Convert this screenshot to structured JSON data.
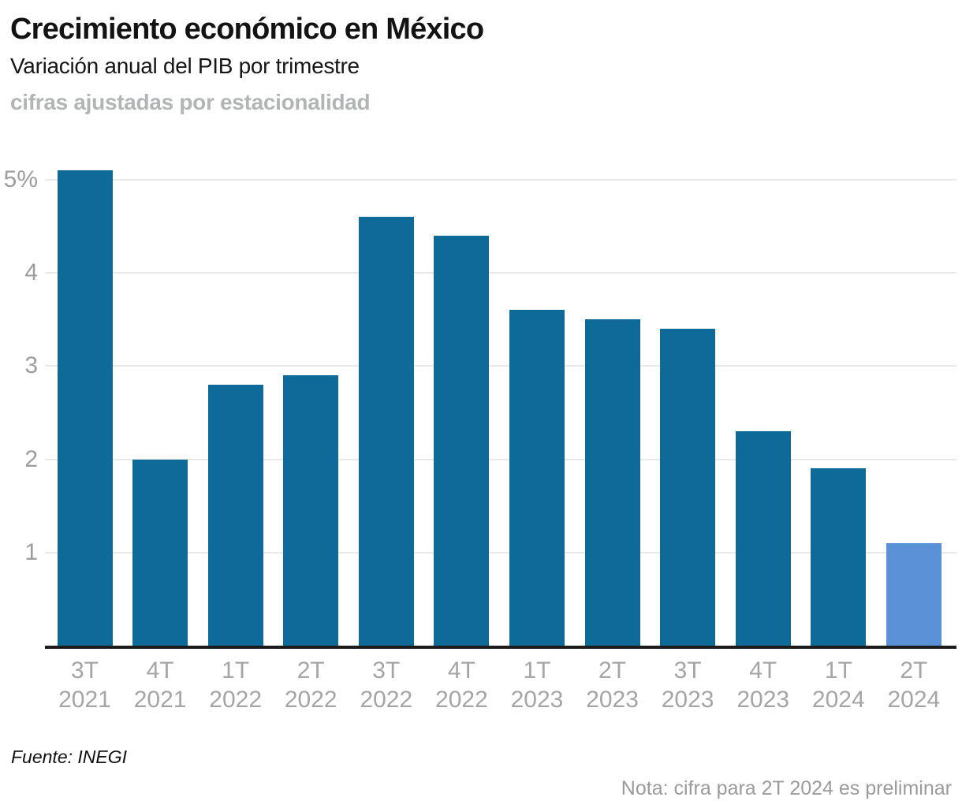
{
  "header": {
    "title": "Crecimiento económico en México",
    "subtitle": "Variación anual del PIB por trimestre",
    "kicker": "cifras ajustadas por estacionalidad"
  },
  "footer": {
    "source": "Fuente: INEGI",
    "note": "Nota: cifra para 2T 2024 es preliminar"
  },
  "chart_data": {
    "type": "bar",
    "title": "Crecimiento económico en México",
    "subtitle": "Variación anual del PIB por trimestre",
    "categories": [
      "3T 2021",
      "4T 2021",
      "1T 2022",
      "2T 2022",
      "3T 2022",
      "4T 2022",
      "1T 2023",
      "2T 2023",
      "3T 2023",
      "4T 2023",
      "1T 2024",
      "2T 2024"
    ],
    "values": [
      5.1,
      2.0,
      2.8,
      2.9,
      4.6,
      4.4,
      3.6,
      3.5,
      3.4,
      2.3,
      1.9,
      1.1
    ],
    "xlabel": "",
    "ylabel": "",
    "unit": "%",
    "ylim": [
      0,
      5.28
    ],
    "yticks": [
      1,
      2,
      3,
      4,
      5
    ],
    "ytick_labels": [
      "1",
      "2",
      "3",
      "4",
      "5%"
    ],
    "grid": true,
    "legend": false,
    "bar_color": "#0e6a98",
    "highlight_color": "#5b91d6",
    "highlight_index": 11,
    "gridline_color": "#e8e8e8",
    "axis_line_color": "#1c1c1c"
  }
}
